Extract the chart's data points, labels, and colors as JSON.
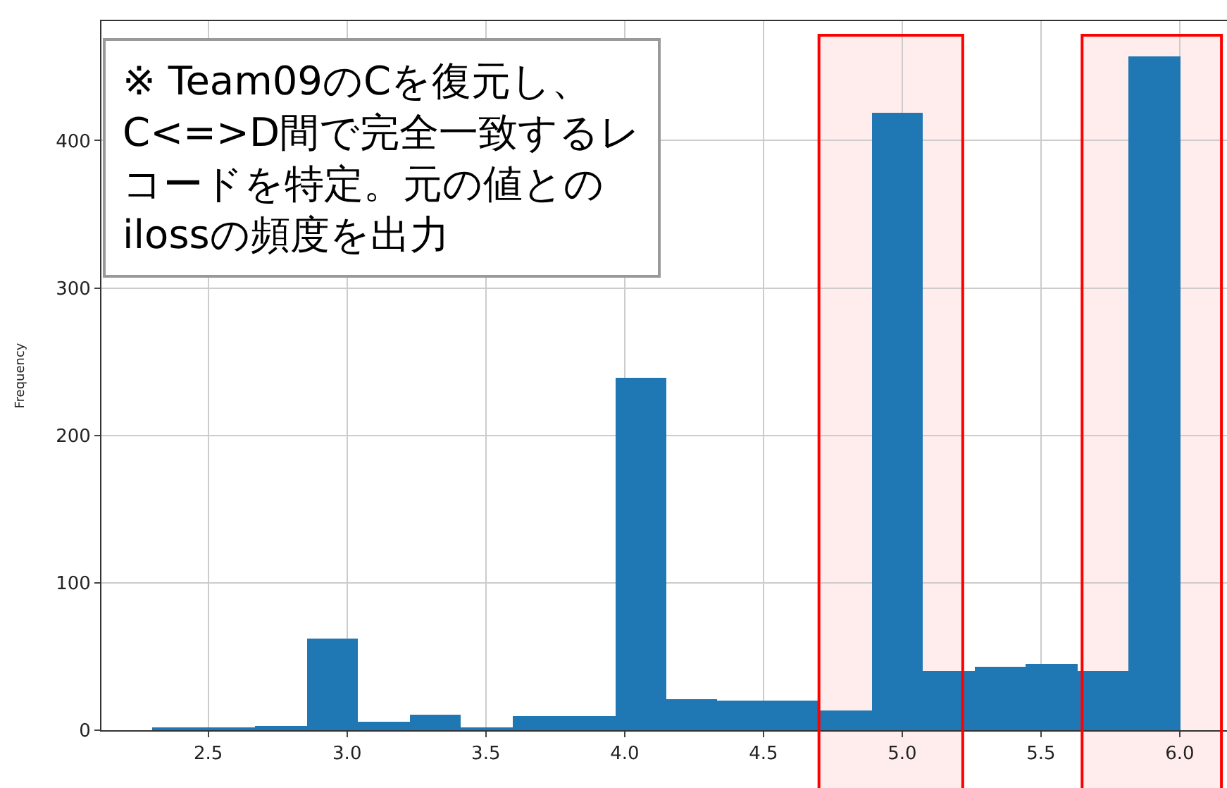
{
  "chart_data": {
    "type": "histogram",
    "ylabel": "Frequency",
    "bins": [
      2.3,
      2.485,
      2.67,
      2.855,
      3.04,
      3.225,
      3.41,
      3.595,
      3.78,
      3.965,
      4.15,
      4.335,
      4.52,
      4.705,
      4.89,
      5.075,
      5.26,
      5.445,
      5.63,
      5.815,
      6.0
    ],
    "values": [
      1,
      2,
      3,
      62,
      6,
      11,
      1,
      10,
      10,
      239,
      21,
      20,
      20,
      13,
      419,
      40,
      43,
      45,
      40,
      457
    ],
    "color": "#1f77b4",
    "xlim": [
      2.115,
      6.17
    ],
    "xticks": [
      {
        "value": 2.5,
        "label": "2.5"
      },
      {
        "value": 3.0,
        "label": "3.0"
      },
      {
        "value": 3.5,
        "label": "3.5"
      },
      {
        "value": 4.0,
        "label": "4.0"
      },
      {
        "value": 4.5,
        "label": "4.5"
      },
      {
        "value": 5.0,
        "label": "5.0"
      },
      {
        "value": 5.5,
        "label": "5.5"
      },
      {
        "value": 6.0,
        "label": "6.0"
      }
    ],
    "ylim": [
      0,
      481
    ],
    "yticks": [
      0,
      100,
      200,
      300,
      400
    ],
    "grid": true,
    "bands": [
      {
        "axis": "x",
        "from": 4.7,
        "to": 5.218,
        "color": "#ff0000"
      },
      {
        "axis": "x",
        "from": 5.648,
        "to": 6.15,
        "color": "#ff0000"
      }
    ],
    "annotations": [
      "※ Team09のCを復元し、$^{}$C<=>D間で完全一致するレ$^{}$コードを特定。元の値との$^{}$ilossの頻度を出力"
    ]
  }
}
